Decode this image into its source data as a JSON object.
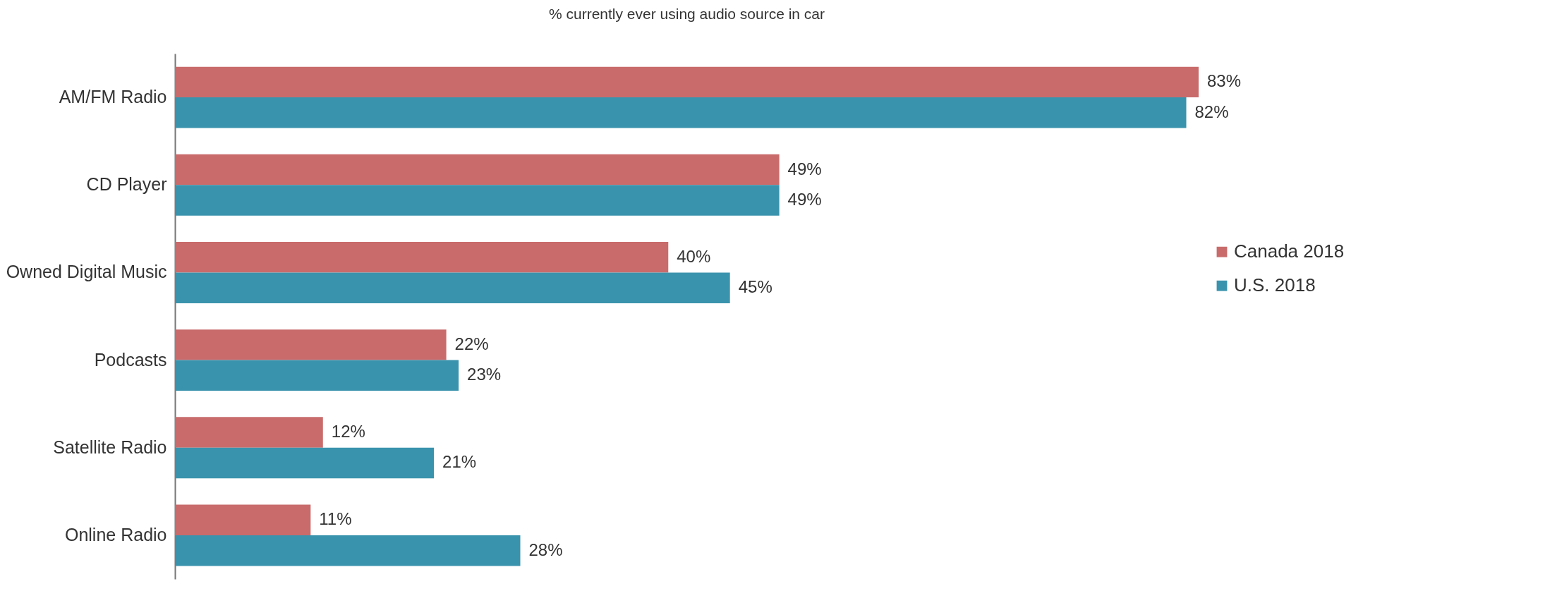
{
  "chart_data": {
    "type": "bar",
    "orientation": "horizontal",
    "relative": false,
    "title": "% currently ever using audio source in car",
    "categories": [
      "AM/FM Radio",
      "CD Player",
      "Owned Digital Music",
      "Podcasts",
      "Satellite Radio",
      "Online Radio"
    ],
    "series": [
      {
        "name": "Canada 2018",
        "color": "#c96b6b",
        "values": [
          83,
          49,
          40,
          22,
          12,
          11
        ],
        "value_labels": [
          "83%",
          "49%",
          "40%",
          "22%",
          "12%",
          "11%"
        ]
      },
      {
        "name": "U.S. 2018",
        "color": "#3a93ad",
        "values": [
          82,
          49,
          45,
          23,
          21,
          28
        ],
        "value_labels": [
          "82%",
          "49%",
          "45%",
          "23%",
          "21%",
          "28%"
        ]
      }
    ],
    "legend": "right",
    "grid": false
  }
}
